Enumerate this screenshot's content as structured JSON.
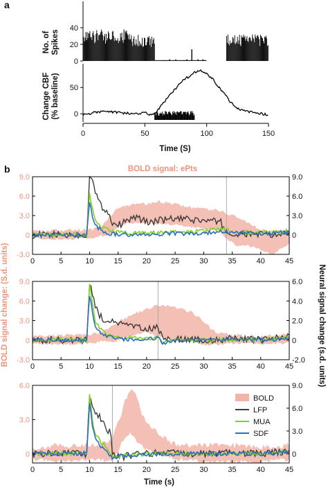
{
  "chart_data": [
    {
      "panel": "a",
      "type": "bar",
      "ylabel": "No. of Spikes",
      "xlim": [
        0,
        150
      ],
      "ylim": [
        0,
        50
      ],
      "y_ticks": [
        0,
        20,
        40
      ],
      "values_summary": [
        {
          "x_range": [
            0,
            38
          ],
          "spikes": 38
        },
        {
          "x_range": [
            38,
            45
          ],
          "spikes": 32
        },
        {
          "x_range": [
            45,
            58
          ],
          "spikes": 30
        },
        {
          "x_range": [
            58,
            100
          ],
          "spikes": 1
        },
        {
          "x_range": [
            102,
            116
          ],
          "spikes": 0
        },
        {
          "x_range": [
            116,
            150
          ],
          "spikes": 32
        }
      ]
    },
    {
      "panel": "a",
      "type": "line",
      "ylabel": "Change CBF (% baseline)",
      "xlabel": "Time (S)",
      "xlim": [
        0,
        150
      ],
      "x_ticks": [
        0,
        50,
        100,
        150
      ],
      "ylim": [
        -5,
        95
      ],
      "y_ticks": [
        0,
        50
      ],
      "x": [
        0,
        10,
        20,
        30,
        40,
        50,
        55,
        60,
        65,
        70,
        75,
        80,
        85,
        90,
        95,
        100,
        105,
        110,
        115,
        120,
        125,
        130,
        135,
        140,
        145,
        150
      ],
      "y": [
        -2,
        3,
        4,
        2,
        0,
        2,
        -3,
        5,
        20,
        35,
        48,
        62,
        70,
        78,
        82,
        76,
        66,
        50,
        36,
        20,
        10,
        6,
        4,
        2,
        0,
        -2
      ],
      "stimulus_bar_x": [
        58,
        90
      ]
    },
    {
      "panel": "b",
      "type": "line",
      "title": "BOLD signal: ePts",
      "xlim": [
        0,
        45
      ],
      "x_ticks": [
        0,
        5,
        10,
        15,
        20,
        25,
        30,
        35,
        40,
        45
      ],
      "y_left_ticks": [
        -3.0,
        0,
        3.0,
        6.0,
        9.0
      ],
      "y_left_ticks_text": [
        "-3.0",
        "0",
        "3.0",
        "6.0",
        "9.0"
      ],
      "y_right_ticks": [
        0,
        3.0,
        6.0,
        9.0
      ],
      "y_right_ticks_text": [
        "0",
        "3.0",
        "6.0",
        "9.0"
      ],
      "vline": 34,
      "bold_envelope": {
        "x": [
          0,
          5,
          10,
          12,
          14,
          15,
          17,
          20,
          22,
          25,
          28,
          30,
          33,
          34,
          36,
          38,
          40,
          42,
          45
        ],
        "upper": [
          0.3,
          0.5,
          0.5,
          1.0,
          3.0,
          4.0,
          4.5,
          4.5,
          5.0,
          4.5,
          4.0,
          3.8,
          3.5,
          3.0,
          2.5,
          1.5,
          0.5,
          0.3,
          0.5
        ],
        "lower": [
          -0.3,
          -0.5,
          -0.3,
          0.0,
          0.5,
          1.5,
          2.0,
          2.0,
          2.0,
          1.8,
          1.5,
          1.2,
          1.0,
          -0.5,
          -1.5,
          -1.5,
          -2.0,
          -3.0,
          -1.0
        ]
      },
      "series": [
        {
          "name": "LFP",
          "color": "#3a3a3a",
          "x": [
            0,
            5,
            9.5,
            10,
            10.5,
            11,
            12,
            13,
            14,
            15,
            18,
            20,
            25,
            30,
            33,
            34,
            35,
            40,
            42,
            45
          ],
          "y": [
            0,
            0,
            0,
            9.5,
            9.0,
            6.5,
            4.5,
            3.8,
            2.0,
            1.5,
            2.8,
            2.0,
            2.5,
            2.2,
            2.0,
            0.3,
            0,
            0.2,
            -0.2,
            0.5
          ]
        },
        {
          "name": "MUA",
          "color": "#7ed321",
          "x": [
            0,
            5,
            9.5,
            10,
            10.5,
            11,
            12,
            13,
            15,
            20,
            25,
            30,
            34,
            35,
            40,
            45
          ],
          "y": [
            0,
            0.1,
            0,
            6.5,
            4.0,
            2.2,
            1.3,
            0.8,
            0.4,
            0.3,
            0.4,
            0.6,
            1.0,
            0.5,
            0.3,
            0.5
          ]
        },
        {
          "name": "SDF",
          "color": "#2b6cc4",
          "x": [
            0,
            5,
            9.5,
            10,
            10.5,
            11,
            12,
            13,
            15,
            20,
            25,
            30,
            34,
            35,
            40,
            45
          ],
          "y": [
            0,
            0,
            0,
            5.0,
            2.8,
            1.5,
            0.7,
            0.3,
            0.1,
            0.1,
            0.2,
            0.3,
            0.5,
            0.3,
            0.2,
            0.4
          ]
        }
      ]
    },
    {
      "panel": "b",
      "type": "line",
      "xlim": [
        0,
        45
      ],
      "x_ticks": [
        0,
        5,
        10,
        15,
        20,
        25,
        30,
        35,
        40,
        45
      ],
      "y_left_ticks": [
        -3.0,
        0,
        3.0,
        6.0,
        9.0
      ],
      "y_left_ticks_text": [
        "-3.0",
        "0",
        "3.0",
        "6.0",
        "9.0"
      ],
      "y_left_label": "BOLD signal change: (S.d. units)",
      "y_right_ticks": [
        -2.0,
        0,
        2.0,
        4.0,
        6.0
      ],
      "y_right_ticks_text": [
        "-2.0",
        "0",
        "2.0",
        "4.0",
        "6.0"
      ],
      "y_right_label": "Neural signal change (s.d. units)",
      "vline": 22,
      "bold_envelope": {
        "x": [
          0,
          5,
          10,
          12,
          14,
          16,
          18,
          20,
          22,
          24,
          26,
          28,
          30,
          32,
          35,
          40,
          45
        ],
        "upper": [
          0.3,
          0.5,
          0.5,
          1.0,
          2.0,
          3.0,
          3.8,
          4.5,
          5.2,
          5.0,
          4.5,
          4.0,
          2.5,
          1.0,
          0.5,
          0.3,
          0.5
        ],
        "lower": [
          -0.3,
          -0.5,
          -0.3,
          0.0,
          0.0,
          0.5,
          1.0,
          1.5,
          0.8,
          0.5,
          0.0,
          0.0,
          -0.5,
          -0.5,
          -0.3,
          -0.3,
          -0.3
        ]
      },
      "series": [
        {
          "name": "LFP",
          "color": "#3a3a3a",
          "x": [
            0,
            5,
            9.5,
            10,
            10.5,
            11,
            12,
            13,
            15,
            18,
            20,
            22,
            23,
            25,
            30,
            35,
            40,
            45
          ],
          "y": [
            0,
            0,
            0,
            9.0,
            7.0,
            5.0,
            3.5,
            3.0,
            2.5,
            2.0,
            1.5,
            2.0,
            0,
            0.2,
            0,
            0.2,
            0,
            0.6
          ]
        },
        {
          "name": "MUA",
          "color": "#7ed321",
          "x": [
            0,
            5,
            9.5,
            10,
            10.5,
            11,
            12,
            13,
            15,
            20,
            22,
            23,
            25,
            30,
            35,
            40,
            45
          ],
          "y": [
            0,
            0.1,
            0,
            8.5,
            5.5,
            3.0,
            1.5,
            0.8,
            0.4,
            0.3,
            0.5,
            -0.5,
            0.1,
            0,
            0.1,
            0,
            0.4
          ]
        },
        {
          "name": "SDF",
          "color": "#2b6cc4",
          "x": [
            0,
            5,
            9.5,
            10,
            10.5,
            11,
            12,
            13,
            15,
            20,
            22,
            23,
            25,
            30,
            35,
            40,
            45
          ],
          "y": [
            0,
            0,
            0,
            7.0,
            4.5,
            2.2,
            1.0,
            0.5,
            0.2,
            0.1,
            0.3,
            -0.6,
            0,
            0,
            0.1,
            0,
            0.3
          ]
        }
      ]
    },
    {
      "panel": "b",
      "type": "line",
      "xlim": [
        0,
        45
      ],
      "xlabel": "Time (s)",
      "x_ticks": [
        0,
        5,
        10,
        15,
        20,
        25,
        30,
        35,
        40,
        45
      ],
      "y_left_ticks": [
        0,
        3.0,
        6.0
      ],
      "y_left_ticks_text": [
        "0",
        "3.0",
        "6.0"
      ],
      "y_right_ticks": [
        0,
        3.0,
        6.0,
        9.0
      ],
      "y_right_ticks_text": [
        "0",
        "3.0",
        "6.0",
        "9.0"
      ],
      "vline": 14,
      "legend": "right",
      "bold_envelope": {
        "x": [
          0,
          5,
          10,
          12,
          14,
          15,
          16,
          17,
          18,
          19,
          20,
          22,
          24,
          26,
          30,
          35,
          40,
          45
        ],
        "upper": [
          0.3,
          0.5,
          0.5,
          0.5,
          1.0,
          2.5,
          4.0,
          5.5,
          5.0,
          3.5,
          2.5,
          1.5,
          0.8,
          0.5,
          0.5,
          0.5,
          0.3,
          0.5
        ],
        "lower": [
          -0.3,
          -0.5,
          -0.3,
          -0.3,
          -0.5,
          0.5,
          1.5,
          2.0,
          1.5,
          1.0,
          0.5,
          0.2,
          0.0,
          -0.3,
          -0.5,
          -0.5,
          -0.5,
          -0.3
        ]
      },
      "series": [
        {
          "name": "BOLD",
          "color": "#f2b4a8"
        },
        {
          "name": "LFP",
          "color": "#3a3a3a",
          "x": [
            0,
            5,
            9.5,
            10,
            10.5,
            11,
            12,
            13,
            13.8,
            14,
            15,
            20,
            25,
            30,
            35,
            40,
            45
          ],
          "y": [
            0,
            0,
            0,
            9.5,
            7.5,
            6.5,
            5.5,
            4.0,
            3.0,
            0,
            -0.5,
            0,
            0.2,
            0,
            0.2,
            0,
            0.5
          ]
        },
        {
          "name": "MUA",
          "color": "#7ed321",
          "x": [
            0,
            5,
            9.5,
            10,
            10.5,
            11,
            12,
            13,
            14,
            15,
            20,
            25,
            30,
            35,
            40,
            45
          ],
          "y": [
            0,
            0.1,
            0,
            9.0,
            5.0,
            3.0,
            1.8,
            1.0,
            -0.6,
            -0.3,
            0,
            0.1,
            0,
            0.1,
            0,
            0.4
          ]
        },
        {
          "name": "SDF",
          "color": "#2b6cc4",
          "x": [
            0,
            5,
            9.5,
            10,
            10.5,
            11,
            12,
            13,
            14,
            15,
            20,
            25,
            30,
            35,
            40,
            45
          ],
          "y": [
            0,
            0,
            0,
            8.0,
            4.5,
            2.5,
            1.2,
            0.6,
            -0.7,
            -0.4,
            0,
            0,
            0,
            0.1,
            0,
            0.3
          ]
        }
      ]
    }
  ],
  "labels": {
    "panel_a": "a",
    "panel_b": "b",
    "a_spikes_ylabel_1": "No. of",
    "a_spikes_ylabel_2": "Spikes",
    "a_cbf_ylabel_1": "Change CBF",
    "a_cbf_ylabel_2": "(% baseline)",
    "a_xlabel": "Time (S)",
    "b_title": "BOLD signal: ePts",
    "b_left_label": "BOLD signal change: (S.d. units)",
    "b_right_label": "Neural signal change (s.d. units)",
    "b_xlabel": "Time (s)"
  },
  "colors": {
    "bold_fill": "#f2b4a8",
    "bold_text": "#e9967a",
    "lfp": "#3a3a3a",
    "mua": "#7ed321",
    "sdf": "#2b6cc4",
    "vline": "#aaaaaa"
  }
}
